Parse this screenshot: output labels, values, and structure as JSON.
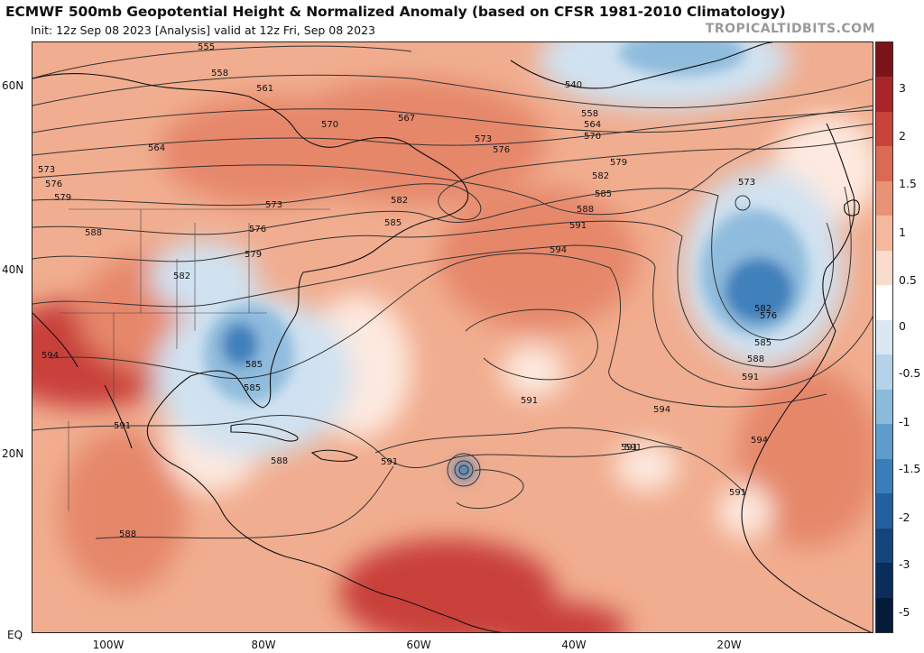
{
  "header": {
    "title": "ECMWF 500mb Geopotential Height & Normalized Anomaly (based on CFSR 1981-2010 Climatology)",
    "subtitle": "Init: 12z Sep 08 2023   [Analysis]   valid at 12z Fri, Sep 08 2023",
    "brand": "TROPICALTIDBITS.COM"
  },
  "axes": {
    "lat_labels": [
      "60N",
      "40N",
      "20N",
      "EQ"
    ],
    "lon_labels": [
      "100W",
      "80W",
      "60W",
      "40W",
      "20W"
    ]
  },
  "colorbar": {
    "labels": [
      "3",
      "2",
      "1.5",
      "1",
      "0.5",
      "0",
      "-0.5",
      "-1",
      "-1.5",
      "-2",
      "-3",
      "-5"
    ],
    "colors": [
      "#7a1418",
      "#a8252a",
      "#c8433c",
      "#db6a55",
      "#ea9276",
      "#f3b89d",
      "#f9dccd",
      "#ffffff",
      "#dbe8f3",
      "#b5d2e8",
      "#8cbadb",
      "#5f9bcb",
      "#3b7db9",
      "#24609f",
      "#16447c",
      "#0c2c5a",
      "#061a3a"
    ]
  },
  "map": {
    "colors": {
      "ocean_base": "#f1ad8f",
      "warm": "#e6876b",
      "hot": "#c9403a",
      "neutral": "#fde9df",
      "cold1": "#d0e2f1",
      "cold2": "#8fbcdd",
      "cold3": "#3f80bb",
      "coast": "#111111"
    },
    "contour_labels": [
      "555",
      "558",
      "561",
      "564",
      "567",
      "570",
      "573",
      "576",
      "579",
      "582",
      "585",
      "588",
      "591",
      "594",
      "540",
      "558",
      "564",
      "570",
      "573",
      "576",
      "579",
      "582",
      "585",
      "588",
      "591",
      "594",
      "591",
      "588",
      "594",
      "591",
      "591",
      "585",
      "576",
      "573",
      "582",
      "585",
      "588",
      "591",
      "594",
      "591",
      "588",
      "591",
      "576",
      "573",
      "582",
      "585",
      "579"
    ]
  }
}
